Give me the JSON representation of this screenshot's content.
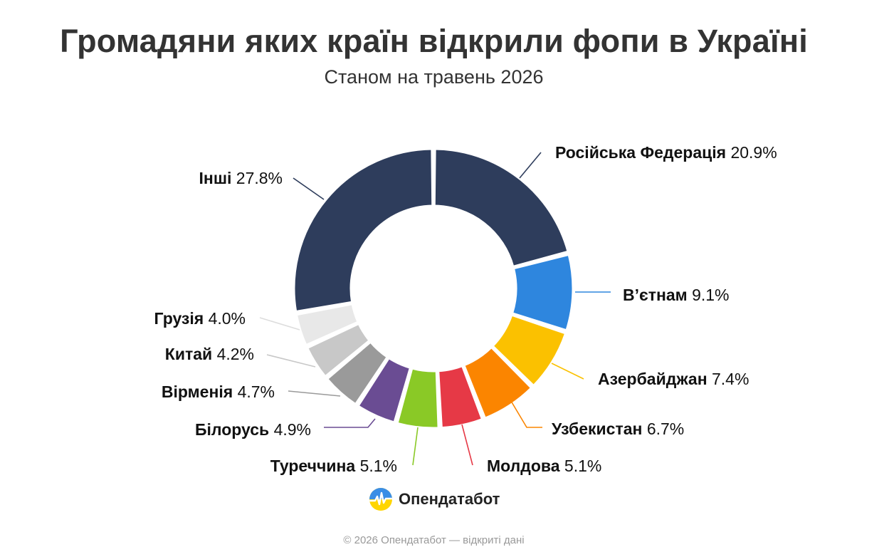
{
  "title": "Громадяни яких країн відкрили фопи в Україні",
  "subtitle": "Станом на травень 2026",
  "chart_data": {
    "type": "donut",
    "unit": "%",
    "slices": [
      {
        "label": "Російська Федерація",
        "value": 20.9,
        "color": "#2e3d5c"
      },
      {
        "label": "В’єтнам",
        "value": 9.1,
        "color": "#2e86de"
      },
      {
        "label": "Азербайджан",
        "value": 7.4,
        "color": "#fbc100"
      },
      {
        "label": "Узбекистан",
        "value": 6.7,
        "color": "#fb8500"
      },
      {
        "label": "Молдова",
        "value": 5.1,
        "color": "#e63946"
      },
      {
        "label": "Туреччина",
        "value": 5.1,
        "color": "#8ac926"
      },
      {
        "label": "Білорусь",
        "value": 4.9,
        "color": "#6a4c93"
      },
      {
        "label": "Вірменія",
        "value": 4.7,
        "color": "#9a9a9a"
      },
      {
        "label": "Китай",
        "value": 4.2,
        "color": "#c8c8c8"
      },
      {
        "label": "Грузія",
        "value": 4.0,
        "color": "#e8e8e8"
      },
      {
        "label": "Інші",
        "value": 27.8,
        "color": "#2e3d5c"
      }
    ]
  },
  "logo": {
    "text": "Опендатабот",
    "icon": "opendatabot-logo-icon"
  },
  "footer": "© 2026 Опендатабот — відкриті дані"
}
